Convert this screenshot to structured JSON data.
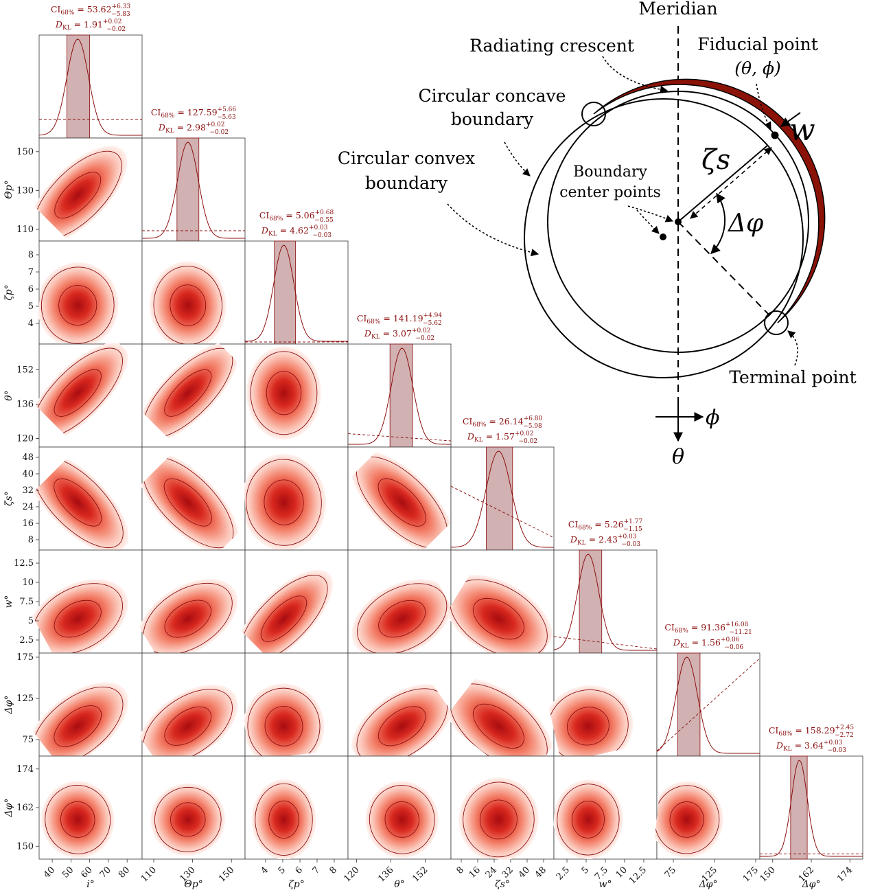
{
  "chart_data": {
    "type": "corner",
    "colors": {
      "accent": "#8b0f0f",
      "band": "#c9a3a3",
      "fill_light": "#fde9e6",
      "fill_mid": "#f06a55",
      "fill_dark": "#b51012"
    },
    "parameters": [
      {
        "label": "i°",
        "range": [
          33,
          88
        ],
        "ticks": [
          40,
          50,
          60,
          70,
          80
        ],
        "median": 53.62,
        "plus": "+6.33",
        "minus": "−5.83",
        "ci_value": "53.62",
        "dkl_value": "1.91",
        "dkl_plus": "+0.02",
        "dkl_minus": "−0.02",
        "ci_label": "CI",
        "ci_sub": "68%",
        "dkl_label": "D",
        "dkl_sub": "KL",
        "prior": [
          0.18,
          0.18
        ]
      },
      {
        "label": "Θp°",
        "range": [
          104,
          157
        ],
        "ticks": [
          110,
          130,
          150
        ],
        "median": 127.59,
        "plus": "+5.66",
        "minus": "−5.63",
        "ci_value": "127.59",
        "dkl_value": "2.98",
        "dkl_plus": "+0.02",
        "dkl_minus": "−0.02",
        "ci_label": "CI",
        "ci_sub": "68%",
        "dkl_label": "D",
        "dkl_sub": "KL",
        "prior": [
          0.1,
          0.1
        ]
      },
      {
        "label": "ζp°",
        "range": [
          2.8,
          8.8
        ],
        "ticks": [
          4,
          5,
          6,
          7,
          8
        ],
        "median": 5.06,
        "plus": "+0.68",
        "minus": "−0.55",
        "ci_value": "5.06",
        "dkl_value": "4.62",
        "dkl_plus": "+0.03",
        "dkl_minus": "−0.03",
        "ci_label": "CI",
        "ci_sub": "68%",
        "dkl_label": "D",
        "dkl_sub": "KL",
        "prior": [
          0.02,
          0.02
        ]
      },
      {
        "label": "θ°",
        "range": [
          116,
          164
        ],
        "ticks": [
          120,
          136,
          152
        ],
        "median": 141.19,
        "plus": "+4.94",
        "minus": "−5.62",
        "ci_value": "141.19",
        "dkl_value": "3.07",
        "dkl_plus": "+0.02",
        "dkl_minus": "−0.02",
        "ci_label": "CI",
        "ci_sub": "68%",
        "dkl_label": "D",
        "dkl_sub": "KL",
        "prior": [
          0.13,
          0.06
        ]
      },
      {
        "label": "ζs°",
        "range": [
          3,
          53
        ],
        "ticks": [
          8,
          16,
          24,
          32,
          40,
          48
        ],
        "median": 26.14,
        "plus": "+6.80",
        "minus": "−5.98",
        "ci_value": "26.14",
        "dkl_value": "1.57",
        "dkl_plus": "+0.02",
        "dkl_minus": "−0.02",
        "ci_label": "CI",
        "ci_sub": "68%",
        "dkl_label": "D",
        "dkl_sub": "KL",
        "prior": [
          0.62,
          0.12
        ]
      },
      {
        "label": "w°",
        "range": [
          0.8,
          14.2
        ],
        "ticks": [
          2.5,
          5.0,
          7.5,
          10.0,
          12.5
        ],
        "median": 5.26,
        "plus": "+1.77",
        "minus": "−1.15",
        "ci_value": "5.26",
        "dkl_value": "2.43",
        "dkl_plus": "+0.03",
        "dkl_minus": "−0.03",
        "ci_label": "CI",
        "ci_sub": "68%",
        "dkl_label": "D",
        "dkl_sub": "KL",
        "prior": [
          0.16,
          0.04
        ]
      },
      {
        "label": "Δφ°",
        "range": [
          55,
          180
        ],
        "ticks": [
          75,
          125,
          175
        ],
        "median": 91.36,
        "plus": "+16.08",
        "minus": "−11.21",
        "ci_value": "91.36",
        "dkl_value": "1.56",
        "dkl_plus": "+0.06",
        "dkl_minus": "−0.06",
        "ci_label": "CI",
        "ci_sub": "68%",
        "dkl_label": "D",
        "dkl_sub": "KL",
        "prior": [
          0.05,
          0.95
        ]
      },
      {
        "label": "Δφ°",
        "range": [
          146,
          178
        ],
        "ticks": [
          150,
          162,
          174
        ],
        "median": 158.29,
        "plus": "+2.45",
        "minus": "−2.72",
        "ci_value": "158.29",
        "dkl_value": "3.64",
        "dkl_plus": "+0.03",
        "dkl_minus": "−0.03",
        "ci_label": "CI",
        "ci_sub": "68%",
        "dkl_label": "D",
        "dkl_sub": "KL",
        "prior": [
          0.05,
          0.05
        ]
      }
    ]
  },
  "diagram": {
    "meridian": "Meridian",
    "radiating_crescent": "Radiating crescent",
    "fiducial_point": "Fiducial point",
    "fiducial_coords": "(θ, ϕ)",
    "concave_1": "Circular concave",
    "concave_2": "boundary",
    "convex_1": "Circular convex",
    "convex_2": "boundary",
    "center_1": "Boundary",
    "center_2": "center points",
    "terminal_point": "Terminal point",
    "zeta_s": "ζs",
    "w": "w",
    "delta_phi": "Δφ",
    "axis_phi": "ϕ",
    "axis_theta": "θ"
  }
}
